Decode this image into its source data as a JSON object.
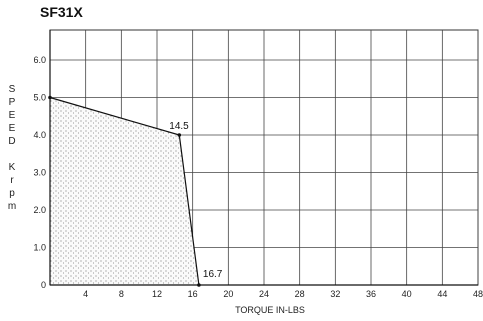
{
  "chart_data": {
    "type": "area",
    "title": "SF31X",
    "xlabel": "TORQUE IN-LBS",
    "ylabel_letters": [
      "S",
      "P",
      "E",
      "E",
      "D",
      "",
      "K",
      "r",
      "p",
      "m"
    ],
    "xlim": [
      0,
      48
    ],
    "ylim": [
      0,
      6.8
    ],
    "xticks": [
      4,
      8,
      12,
      16,
      20,
      24,
      28,
      32,
      36,
      40,
      44,
      48
    ],
    "xtick_labels": [
      "4",
      "8",
      "12",
      "16",
      "20",
      "24",
      "28",
      "32",
      "36",
      "40",
      "44",
      "48"
    ],
    "yticks": [
      0,
      1,
      2,
      3,
      4,
      5,
      6
    ],
    "ytick_labels": [
      "0",
      "1.0",
      "2.0",
      "3.0",
      "4.0",
      "5.0",
      "6.0"
    ],
    "series": [
      {
        "x": [
          0,
          14.5,
          16.7
        ],
        "y": [
          5.0,
          4.0,
          0
        ]
      }
    ],
    "annotations": [
      {
        "text": "14.5",
        "x": 14.5,
        "y": 4.0
      },
      {
        "text": "16.7",
        "x": 16.7,
        "y": 0
      }
    ],
    "grid": true,
    "fill": "stippled"
  }
}
